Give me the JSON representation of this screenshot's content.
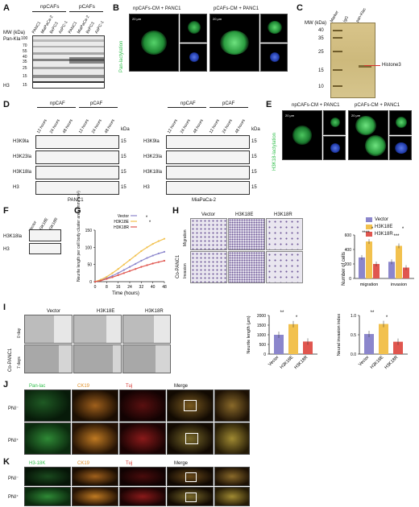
{
  "panels": {
    "A": {
      "label": "A",
      "groups": [
        "npCAFs",
        "pCAFs"
      ],
      "lanes": [
        "PANC1",
        "MiaPaCa-2",
        "BxPC3",
        "AsPC-1",
        "PANC1",
        "MiaPaCa-2",
        "BxPC3",
        "AsPC-1"
      ],
      "mw_header": "MW (kDa)",
      "row1_label": "Pan-Kla",
      "row2_label": "H3",
      "markers": [
        "100",
        "70",
        "55",
        "40",
        "35",
        "25",
        "15",
        "15"
      ]
    },
    "B": {
      "label": "B",
      "conditions": [
        "npCAFs-CM + PANC1",
        "pCAFs-CM + PANC1"
      ],
      "ylabel": "Pan-lactylation",
      "scale": "20 μm"
    },
    "C": {
      "label": "C",
      "mw_header": "MW (kDa)",
      "lanes": [
        "Marker",
        "IgG",
        "pan-Klac"
      ],
      "markers": [
        "40",
        "35",
        "25",
        "15",
        "10"
      ],
      "arrow_label": "Histone3"
    },
    "D": {
      "label": "D",
      "groups": [
        "npCAF",
        "pCAF"
      ],
      "times": [
        "12 hours",
        "24 hours",
        "48 hours",
        "12 hours",
        "24 hours",
        "48 hours"
      ],
      "kda": "kDa",
      "rows": [
        "H3K9la",
        "H3K23la",
        "H3K18la",
        "H3"
      ],
      "mw": [
        "15",
        "15",
        "15",
        "15"
      ],
      "cell_lines": [
        "PANC1",
        "MiaPaCa-2"
      ]
    },
    "E": {
      "label": "E",
      "conditions": [
        "npCAFs-CM + PANC1",
        "pCAFs-CM + PANC1"
      ],
      "ylabel": "H3K18-lactylation",
      "scale": "20 μm"
    },
    "F": {
      "label": "F",
      "lanes": [
        "Vector",
        "H3K18E",
        "H3K18R"
      ],
      "rows": [
        "H3K18la",
        "H3"
      ]
    },
    "G": {
      "label": "G",
      "ylabel": "Neurite length per cell body cluster area (mm/mm²)",
      "xlabel": "Time (hours)",
      "legend": [
        "Vector",
        "H3K18E",
        "H3K18R"
      ],
      "sig": "*"
    },
    "H": {
      "label": "H",
      "columns": [
        "Vector",
        "H3K18E",
        "H3K18R"
      ],
      "rows": [
        "Migration",
        "Invasion"
      ],
      "side_label": "Co-PANC1",
      "legend": [
        "Vector",
        "H3K18E",
        "H3K18R"
      ],
      "ylabel": "Number of cells",
      "sig": [
        "*",
        "****",
        "*",
        "***"
      ]
    },
    "I": {
      "label": "I",
      "columns": [
        "Vector",
        "H3K18E",
        "H3K18R"
      ],
      "rows": [
        "0 day",
        "7 days"
      ],
      "side_label": "Co-PANC1",
      "sig": [
        "**",
        "*"
      ]
    },
    "J": {
      "label": "J",
      "channels": [
        "Pan-lac",
        "CK19",
        "Tuj",
        "Merge"
      ],
      "rows": [
        "PNI⁻",
        "PNI⁺"
      ]
    },
    "K": {
      "label": "K",
      "channels": [
        "H3-18K",
        "CK19",
        "Tuj",
        "Merge"
      ],
      "rows": [
        "PNI⁻",
        "PNI⁺"
      ]
    }
  },
  "colors": {
    "vector": "#8b86cc",
    "h3k18e": "#f2c14e",
    "h3k18r": "#e0564f",
    "green": "#2fbf4a",
    "orange": "#e0902a",
    "red": "#d4322c"
  },
  "chart_data": [
    {
      "type": "line",
      "panel": "G",
      "title": "",
      "xlabel": "Time (hours)",
      "ylabel": "Neurite length per cell body cluster area (mm/mm²)",
      "x": [
        0,
        4,
        8,
        12,
        16,
        20,
        24,
        28,
        32,
        36,
        40,
        44,
        48
      ],
      "xticks": [
        0,
        8,
        16,
        24,
        32,
        40,
        48
      ],
      "yticks": [
        0,
        50,
        100,
        150
      ],
      "ylim": [
        0,
        150
      ],
      "series": [
        {
          "name": "Vector",
          "color": "#8b86cc",
          "values": [
            0,
            4,
            10,
            17,
            25,
            34,
            43,
            52,
            61,
            69,
            76,
            82,
            87
          ]
        },
        {
          "name": "H3K18E",
          "color": "#f2c14e",
          "values": [
            0,
            6,
            14,
            25,
            37,
            50,
            63,
            76,
            89,
            100,
            110,
            118,
            125
          ]
        },
        {
          "name": "H3K18R",
          "color": "#e0564f",
          "values": [
            0,
            3,
            8,
            13,
            19,
            25,
            31,
            37,
            43,
            48,
            53,
            57,
            61
          ]
        }
      ]
    },
    {
      "type": "bar",
      "panel": "H",
      "categories": [
        "migration",
        "invasion"
      ],
      "ylabel": "Number of cells",
      "yticks": [
        0,
        200,
        400,
        600
      ],
      "ylim": [
        0,
        600
      ],
      "series": [
        {
          "name": "Vector",
          "color": "#8b86cc",
          "values": [
            290,
            230
          ]
        },
        {
          "name": "H3K18E",
          "color": "#f2c14e",
          "values": [
            510,
            450
          ]
        },
        {
          "name": "H3K18R",
          "color": "#e0564f",
          "values": [
            200,
            150
          ]
        }
      ]
    },
    {
      "type": "bar",
      "panel": "I",
      "categories": [
        "Vector",
        "H3K18E",
        "H3K18R"
      ],
      "ylabel": "Neurite length (μm)",
      "yticks": [
        0,
        500,
        1000,
        1500,
        2000
      ],
      "ylim": [
        0,
        2000
      ],
      "values": [
        1000,
        1550,
        650
      ],
      "colors": [
        "#8b86cc",
        "#f2c14e",
        "#e0564f"
      ]
    },
    {
      "type": "bar",
      "panel": "I2",
      "categories": [
        "Vector",
        "H3K18E",
        "H3K18R"
      ],
      "ylabel": "Neural invasion index",
      "yticks": [
        0.0,
        0.5,
        1.0
      ],
      "ylim": [
        0,
        1.0
      ],
      "values": [
        0.52,
        0.78,
        0.32
      ],
      "colors": [
        "#8b86cc",
        "#f2c14e",
        "#e0564f"
      ]
    }
  ]
}
